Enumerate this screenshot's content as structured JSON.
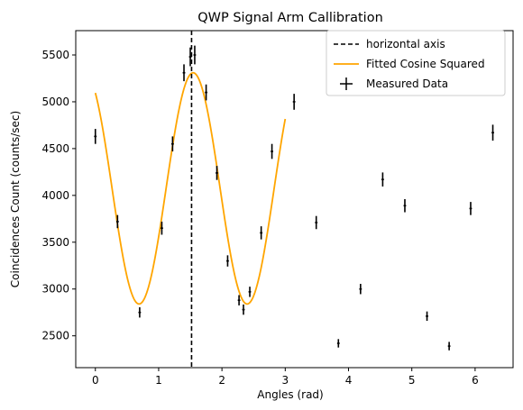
{
  "chart_data": {
    "type": "scatter",
    "title": "QWP Signal Arm Callibration",
    "xlabel": "Angles (rad)",
    "ylabel": "Coincidences Count (counts/sec)",
    "xlim": [
      -0.31,
      6.6
    ],
    "ylim": [
      2160,
      5760
    ],
    "x_ticks": [
      0,
      1,
      2,
      3,
      4,
      5,
      6
    ],
    "y_ticks": [
      2500,
      3000,
      3500,
      4000,
      4500,
      5000,
      5500
    ],
    "grid": false,
    "legend_position": "top-right",
    "colors": {
      "data": "#000000",
      "fit": "#ffa500",
      "axis_line": "#000000"
    },
    "vline": {
      "name": "horizontal axis",
      "x": 1.52,
      "style": "dashed"
    },
    "fit": {
      "name": "Fitted Cosine Squared",
      "model": "A*cos^2(B*x + C) + D",
      "params": {
        "A": 2470,
        "B": 1.84,
        "C": 0.3,
        "D": 2840
      },
      "x_range": [
        0,
        3.0
      ]
    },
    "series": [
      {
        "name": "Measured Data",
        "x": [
          0,
          0.35,
          0.7,
          1.05,
          1.22,
          1.4,
          1.5,
          1.57,
          1.75,
          1.92,
          2.09,
          2.27,
          2.34,
          2.44,
          2.62,
          2.79,
          3.14,
          3.49,
          3.84,
          4.19,
          4.54,
          4.89,
          5.24,
          5.59,
          5.93,
          6.28
        ],
        "y": [
          4630,
          3720,
          2750,
          3650,
          4550,
          5310,
          5480,
          5500,
          5100,
          4240,
          3300,
          2880,
          2780,
          2970,
          3600,
          4470,
          5000,
          3710,
          2420,
          3000,
          4170,
          3890,
          2710,
          2390,
          3860,
          4670
        ],
        "x_err": 0.02,
        "y_err": [
          80,
          70,
          55,
          70,
          80,
          90,
          100,
          100,
          85,
          75,
          60,
          55,
          55,
          55,
          70,
          80,
          85,
          70,
          45,
          55,
          75,
          70,
          50,
          45,
          70,
          85
        ]
      }
    ]
  }
}
